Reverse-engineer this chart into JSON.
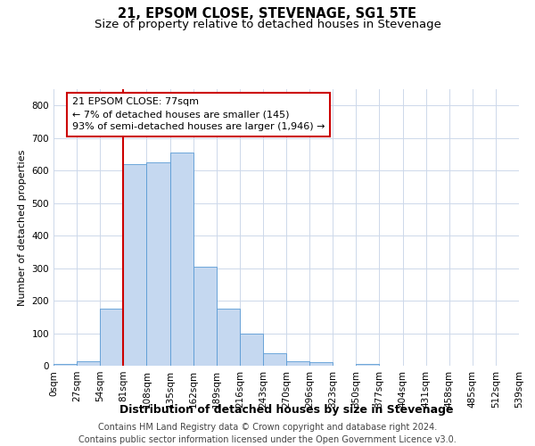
{
  "title": "21, EPSOM CLOSE, STEVENAGE, SG1 5TE",
  "subtitle": "Size of property relative to detached houses in Stevenage",
  "xlabel": "Distribution of detached houses by size in Stevenage",
  "ylabel": "Number of detached properties",
  "bar_values": [
    5,
    15,
    175,
    620,
    625,
    655,
    305,
    175,
    98,
    38,
    15,
    10,
    0,
    5,
    0,
    0,
    0,
    0,
    0,
    0
  ],
  "bar_color": "#c5d8f0",
  "bar_edge_color": "#5b9bd5",
  "x_labels": [
    "0sqm",
    "27sqm",
    "54sqm",
    "81sqm",
    "108sqm",
    "135sqm",
    "162sqm",
    "189sqm",
    "216sqm",
    "243sqm",
    "270sqm",
    "296sqm",
    "323sqm",
    "350sqm",
    "377sqm",
    "404sqm",
    "431sqm",
    "458sqm",
    "485sqm",
    "512sqm",
    "539sqm"
  ],
  "ylim": [
    0,
    850
  ],
  "yticks": [
    0,
    100,
    200,
    300,
    400,
    500,
    600,
    700,
    800
  ],
  "vline_x_bar": 3,
  "vline_color": "#cc0000",
  "annotation_line1": "21 EPSOM CLOSE: 77sqm",
  "annotation_line2": "← 7% of detached houses are smaller (145)",
  "annotation_line3": "93% of semi-detached houses are larger (1,946) →",
  "annotation_box_color": "#ffffff",
  "annotation_box_edge": "#cc0000",
  "footer_line1": "Contains HM Land Registry data © Crown copyright and database right 2024.",
  "footer_line2": "Contains public sector information licensed under the Open Government Licence v3.0.",
  "bg_color": "#ffffff",
  "grid_color": "#cdd8ea",
  "title_fontsize": 10.5,
  "subtitle_fontsize": 9.5,
  "ylabel_fontsize": 8,
  "xlabel_fontsize": 9,
  "tick_fontsize": 7.5,
  "annotation_fontsize": 8,
  "footer_fontsize": 7
}
